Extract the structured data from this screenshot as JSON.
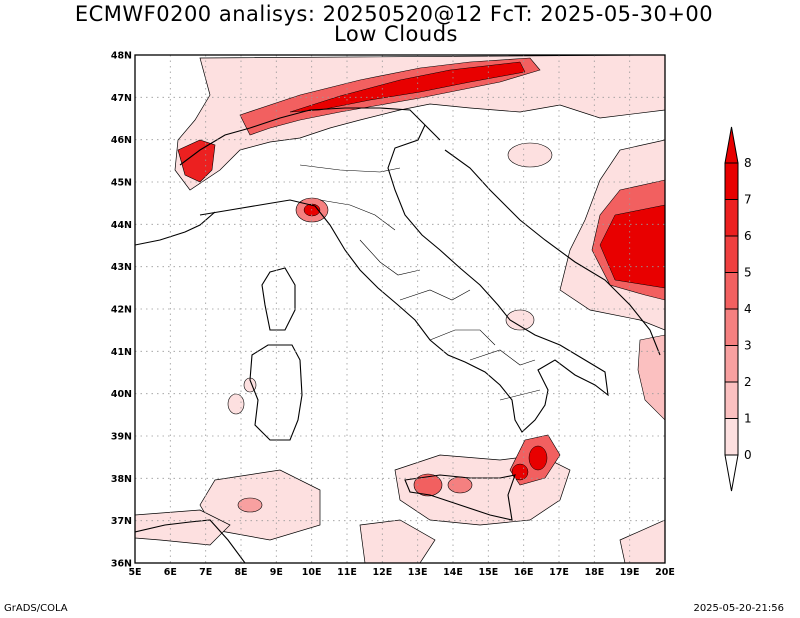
{
  "title": {
    "line1": "ECMWF0200 analisys: 20250520@12 FcT: 2025-05-30+00",
    "line2": "Low Clouds"
  },
  "footer": {
    "credit": "GrADS/COLA",
    "timestamp": "2025-05-20-21:56"
  },
  "map": {
    "lon_range": [
      5,
      20
    ],
    "lat_range": [
      36,
      48
    ],
    "lon_labels": [
      "5E",
      "6E",
      "7E",
      "8E",
      "9E",
      "10E",
      "11E",
      "12E",
      "13E",
      "14E",
      "15E",
      "16E",
      "17E",
      "18E",
      "19E",
      "20E"
    ],
    "lat_labels": [
      "36N",
      "37N",
      "38N",
      "39N",
      "40N",
      "41N",
      "42N",
      "43N",
      "44N",
      "45N",
      "46N",
      "47N",
      "48N"
    ],
    "grid": "dotted"
  },
  "colorbar": {
    "levels": [
      "0",
      "1",
      "2",
      "3",
      "4",
      "5",
      "6",
      "7",
      "8"
    ],
    "colors": [
      "#ffffff",
      "#fde0e0",
      "#fbc0c0",
      "#f8a0a0",
      "#f58080",
      "#f26060",
      "#ef4040",
      "#ec2020",
      "#e80000"
    ]
  }
}
